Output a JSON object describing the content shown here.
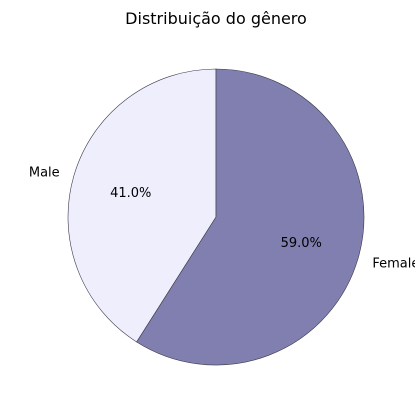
{
  "chart_data": {
    "type": "pie",
    "title": "Distribuição do gênero",
    "slices": [
      {
        "label": "Male",
        "value": 41.0,
        "pct_text": "41.0%",
        "color": "#eeeefd"
      },
      {
        "label": "Female",
        "value": 59.0,
        "pct_text": "59.0%",
        "color": "#807faf"
      }
    ],
    "start_angle_deg": 90,
    "direction": "counterclockwise",
    "edge_color": "#3a3a4a"
  }
}
